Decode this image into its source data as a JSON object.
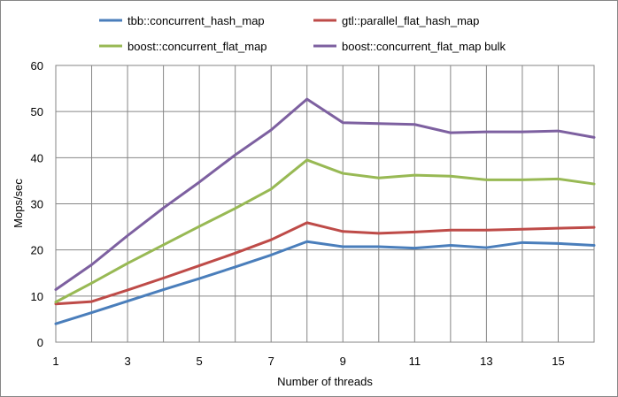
{
  "chart_data": {
    "type": "line",
    "title": "",
    "xlabel": "Number of threads",
    "ylabel": "Mops/sec",
    "xlim": [
      1,
      16
    ],
    "ylim": [
      0,
      60
    ],
    "x_ticks": [
      1,
      3,
      5,
      7,
      9,
      11,
      13,
      15
    ],
    "y_ticks": [
      0,
      10,
      20,
      30,
      40,
      50,
      60
    ],
    "grid": true,
    "legend_position": "top",
    "x": [
      1,
      2,
      3,
      4,
      5,
      6,
      7,
      8,
      9,
      10,
      11,
      12,
      13,
      14,
      15,
      16
    ],
    "series": [
      {
        "name": "tbb::concurrent_hash_map",
        "color": "#4a7ebb",
        "values": [
          4.0,
          6.4,
          8.9,
          11.4,
          13.8,
          16.3,
          18.9,
          21.8,
          20.7,
          20.7,
          20.4,
          21.0,
          20.5,
          21.6,
          21.4,
          21.0
        ]
      },
      {
        "name": "gtl::parallel_flat_hash_map",
        "color": "#be4b48",
        "values": [
          8.3,
          8.8,
          11.3,
          13.9,
          16.6,
          19.3,
          22.2,
          25.9,
          24.0,
          23.6,
          23.9,
          24.3,
          24.3,
          24.5,
          24.7,
          24.9
        ]
      },
      {
        "name": "boost::concurrent_flat_map",
        "color": "#98b954",
        "values": [
          8.7,
          12.8,
          17.1,
          21.1,
          25.1,
          29.0,
          33.2,
          39.5,
          36.6,
          35.6,
          36.2,
          36.0,
          35.2,
          35.2,
          35.4,
          34.3
        ]
      },
      {
        "name": "boost::concurrent_flat_map bulk",
        "color": "#7d60a0",
        "values": [
          11.4,
          16.8,
          23.1,
          29.1,
          34.7,
          40.6,
          46.0,
          52.7,
          47.6,
          47.4,
          47.2,
          45.4,
          45.6,
          45.6,
          45.8,
          44.4
        ]
      }
    ]
  }
}
